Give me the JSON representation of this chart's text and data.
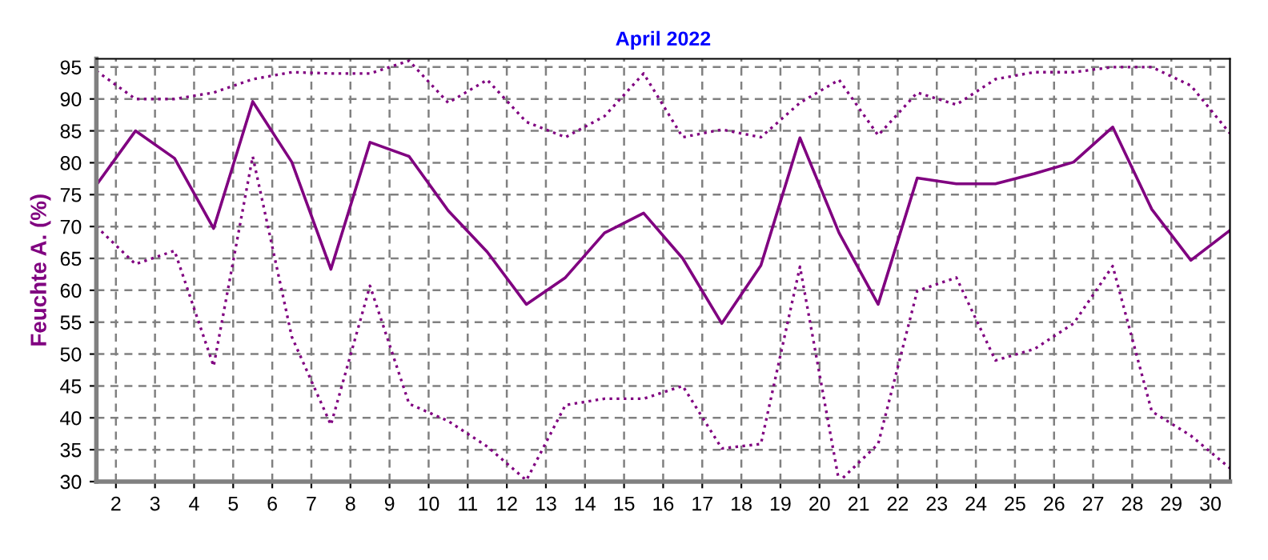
{
  "chart_data": {
    "type": "line",
    "title": "April 2022",
    "ylabel": "Feuchte A. (%)",
    "x": [
      1.5,
      2.5,
      3.5,
      4.5,
      5.5,
      6.5,
      7.5,
      8.5,
      9.5,
      10.5,
      11.5,
      12.5,
      13.5,
      14.5,
      15.5,
      16.5,
      17.5,
      18.5,
      19.5,
      20.5,
      21.5,
      22.5,
      23.5,
      24.5,
      25.5,
      26.5,
      27.5,
      28.5,
      29.5,
      30.5
    ],
    "xlim": [
      1.5,
      30.5
    ],
    "xticks": [
      2,
      3,
      4,
      5,
      6,
      7,
      8,
      9,
      10,
      11,
      12,
      13,
      14,
      15,
      16,
      17,
      18,
      19,
      20,
      21,
      22,
      23,
      24,
      25,
      26,
      27,
      28,
      29,
      30
    ],
    "ylim": [
      30,
      96.3
    ],
    "yticks": [
      30,
      35,
      40,
      45,
      50,
      55,
      60,
      65,
      70,
      75,
      80,
      85,
      90,
      95
    ],
    "grid": true,
    "legend": false,
    "marker": "none",
    "series": [
      {
        "color": "#800080",
        "line_style": "solid",
        "values": [
          76.5,
          85,
          80.7,
          69.7,
          89.6,
          80.1,
          63.3,
          83.2,
          81,
          72.5,
          66,
          57.8,
          62,
          69,
          72.1,
          65,
          54.8,
          63.9,
          83.9,
          69,
          57.8,
          77.6,
          76.7,
          76.7,
          78.3,
          80.1,
          85.6,
          72.7,
          64.7,
          69.4
        ]
      },
      {
        "color": "#800080",
        "line_style": "dotted",
        "values": [
          94.4,
          90,
          90,
          91,
          93.1,
          94.2,
          94,
          94,
          96,
          89.4,
          93,
          86.4,
          84,
          87.3,
          94,
          84,
          85.2,
          84,
          89.4,
          93,
          84.3,
          91,
          89.1,
          93.1,
          94.2,
          94.2,
          95,
          95,
          92.1,
          84.6
        ]
      },
      {
        "color": "#800080",
        "line_style": "dotted",
        "values": [
          70,
          64.1,
          66.2,
          48.1,
          81,
          52.7,
          38.9,
          60.7,
          42.2,
          39.5,
          35.5,
          30.2,
          42,
          43,
          43,
          45,
          35.2,
          35.9,
          63.7,
          30,
          35.9,
          59.9,
          62,
          49,
          50.8,
          54.8,
          63.8,
          41,
          37.2,
          32.1
        ]
      }
    ]
  }
}
